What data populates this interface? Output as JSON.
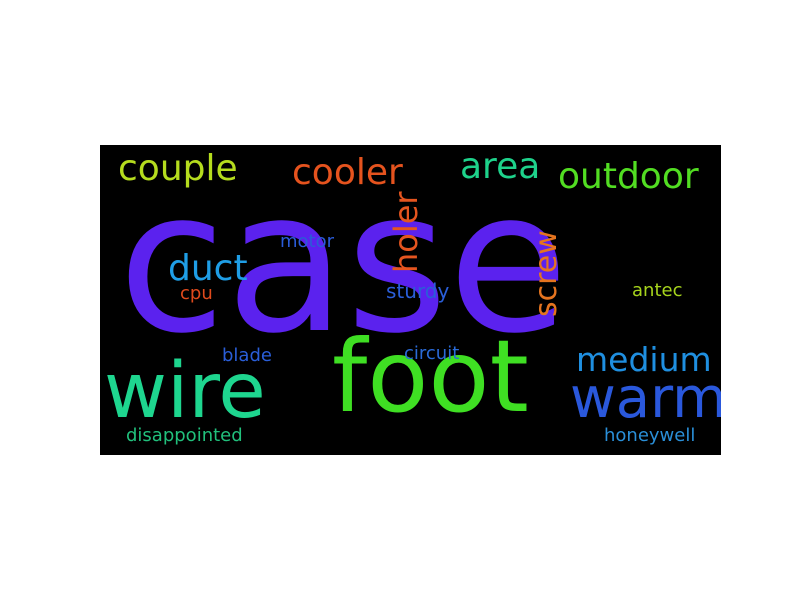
{
  "words": [
    {
      "key": "case",
      "text": "case",
      "color": "#5b22ee"
    },
    {
      "key": "foot",
      "text": "foot",
      "color": "#3fdf23"
    },
    {
      "key": "wire",
      "text": "wire",
      "color": "#1ed68f"
    },
    {
      "key": "warm",
      "text": "warm",
      "color": "#2a58dc"
    },
    {
      "key": "couple",
      "text": "couple",
      "color": "#b5dc1e"
    },
    {
      "key": "cooler",
      "text": "cooler",
      "color": "#e5531e"
    },
    {
      "key": "area",
      "text": "area",
      "color": "#1ed28b"
    },
    {
      "key": "outdoor",
      "text": "outdoor",
      "color": "#52dd22"
    },
    {
      "key": "duct",
      "text": "duct",
      "color": "#1f9ee6"
    },
    {
      "key": "holer",
      "text": "holer",
      "color": "#e5551f"
    },
    {
      "key": "screw",
      "text": "screw",
      "color": "#e5741f"
    },
    {
      "key": "medium",
      "text": "medium",
      "color": "#1f8fe0"
    },
    {
      "key": "motor",
      "text": "motor",
      "color": "#2a5bd8"
    },
    {
      "key": "cpu",
      "text": "cpu",
      "color": "#e04a1c"
    },
    {
      "key": "sturdy",
      "text": "sturdy",
      "color": "#2a5ed8"
    },
    {
      "key": "antec",
      "text": "antec",
      "color": "#a6d41c"
    },
    {
      "key": "blade",
      "text": "blade",
      "color": "#2a5ed8"
    },
    {
      "key": "circuit",
      "text": "circuit",
      "color": "#2a6bd8"
    },
    {
      "key": "disappointed",
      "text": "disappointed",
      "color": "#21c07c"
    },
    {
      "key": "honeywell",
      "text": "honeywell",
      "color": "#2a8fd8"
    }
  ]
}
